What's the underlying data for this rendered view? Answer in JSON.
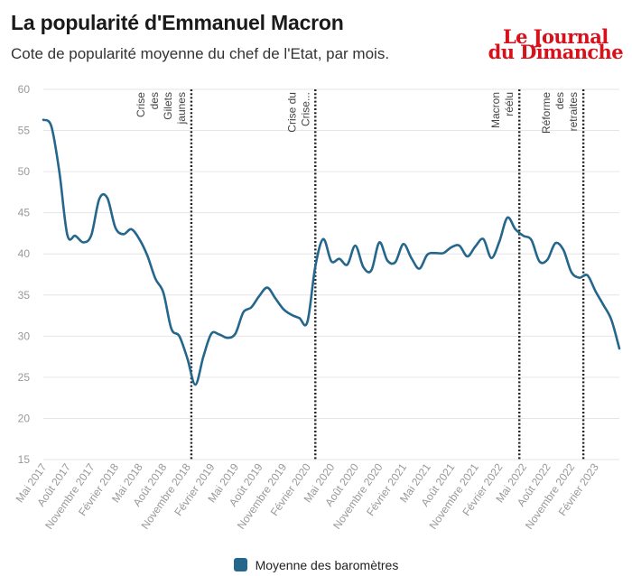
{
  "header": {
    "title": "La popularité d'Emmanuel Macron",
    "subtitle": "Cote de popularité moyenne du chef de l'Etat, par mois."
  },
  "logo": {
    "line1": "Le Journal",
    "line2": "du Dimanche",
    "color": "#d7101a"
  },
  "colors": {
    "series": "#24668c",
    "grid": "#e6e6e6",
    "axis_text": "#999999",
    "marker": "#222222"
  },
  "chart_data": {
    "type": "line",
    "title": "La popularité d'Emmanuel Macron",
    "subtitle": "Cote de popularité moyenne du chef de l'Etat, par mois.",
    "xlabel": "",
    "ylabel": "",
    "ylim": [
      15,
      60
    ],
    "yticks": [
      15,
      20,
      25,
      30,
      35,
      40,
      45,
      50,
      55,
      60
    ],
    "x_start": "Mai 2017",
    "x_tick_labels": [
      "Mai 2017",
      "Août 2017",
      "Novembre 2017",
      "Février 2018",
      "Mai 2018",
      "Août 2018",
      "Novembre 2018",
      "Février 2019",
      "Mai 2019",
      "Août 2019",
      "Novembre 2019",
      "Février 2020",
      "Mai 2020",
      "Août 2020",
      "Novembre 2020",
      "Février 2021",
      "Mai 2021",
      "Août 2021",
      "Novembre 2021",
      "Février 2022",
      "Mai 2022",
      "Août 2022",
      "Novembre 2022",
      "Février 2023"
    ],
    "series": [
      {
        "name": "Moyenne des baromètres",
        "values": [
          56.3,
          55.5,
          50,
          42.3,
          42.2,
          41.4,
          42.3,
          46.7,
          46.8,
          43.2,
          42.4,
          43.0,
          41.8,
          39.8,
          37.0,
          35.3,
          30.9,
          30.0,
          27.3,
          24.1,
          27.5,
          30.3,
          30.2,
          29.8,
          30.3,
          32.9,
          33.5,
          34.9,
          35.9,
          34.6,
          33.3,
          32.6,
          32.2,
          31.7,
          38.5,
          41.8,
          39.1,
          39.4,
          38.7,
          41.0,
          38.4,
          38.0,
          41.4,
          39.2,
          39.0,
          41.2,
          39.5,
          38.2,
          39.9,
          40.1,
          40.1,
          40.8,
          41.0,
          39.7,
          40.9,
          41.8,
          39.5,
          41.5,
          44.4,
          43.0,
          42.2,
          41.7,
          39.1,
          39.3,
          41.3,
          40.5,
          37.8,
          37.1,
          37.4,
          35.5,
          33.8,
          32.0,
          28.5
        ]
      }
    ],
    "annotations": [
      {
        "label": [
          "Crise",
          "des",
          "Gilets",
          "jaunes"
        ],
        "month_index": 18.5
      },
      {
        "label": [
          "Crise du",
          "Crise..."
        ],
        "month_index": 34
      },
      {
        "label": [
          "Macron",
          "réélu"
        ],
        "month_index": 59.5
      },
      {
        "label": [
          "Réforme",
          "des",
          "retraites"
        ],
        "month_index": 67.5
      }
    ],
    "legend": {
      "position": "bottom",
      "entries": [
        "Moyenne des baromètres"
      ]
    },
    "grid": true
  }
}
